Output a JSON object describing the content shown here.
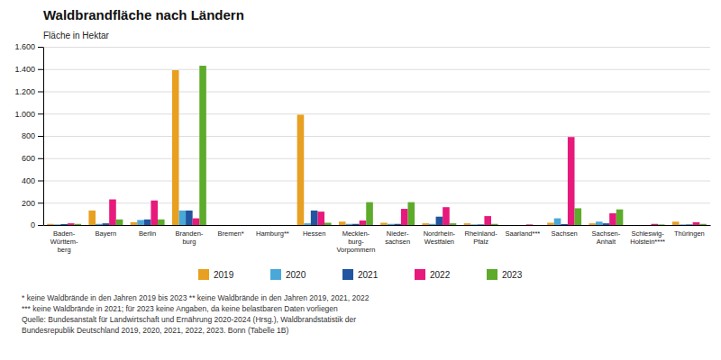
{
  "chart_data": {
    "type": "bar",
    "title": "Waldbrandfläche nach Ländern",
    "ylabel": "Fläche in Hektar",
    "categories": [
      "Baden-\nWürttem-\nberg",
      "Bayern",
      "Berlin",
      "Branden-\nburg",
      "Bremen*",
      "Hamburg**",
      "Hessen",
      "Mecklen-\nburg-\nVorpommern",
      "Nieder-\nsachsen",
      "Nordrhein-\nWestfalen",
      "Rheinland-\nPfalz",
      "Saarland***",
      "Sachsen",
      "Sachsen-\nAnhalt",
      "Schleswig-\nHolstein****",
      "Thüringen"
    ],
    "series": [
      {
        "name": "2019",
        "color": "#E8A020",
        "values": [
          10,
          130,
          25,
          1390,
          0,
          0,
          990,
          30,
          20,
          15,
          15,
          0,
          20,
          15,
          0,
          30
        ]
      },
      {
        "name": "2020",
        "color": "#4AA8D8",
        "values": [
          5,
          10,
          45,
          130,
          0,
          0,
          15,
          10,
          10,
          10,
          5,
          0,
          60,
          30,
          0,
          5
        ]
      },
      {
        "name": "2021",
        "color": "#2155A0",
        "values": [
          8,
          15,
          50,
          130,
          0,
          0,
          130,
          10,
          10,
          75,
          5,
          0,
          8,
          15,
          0,
          5
        ]
      },
      {
        "name": "2022",
        "color": "#E8197C",
        "values": [
          15,
          230,
          220,
          60,
          0,
          0,
          120,
          40,
          145,
          160,
          80,
          5,
          790,
          105,
          10,
          25
        ]
      },
      {
        "name": "2023",
        "color": "#5DAB2B",
        "values": [
          10,
          50,
          50,
          1430,
          0,
          0,
          20,
          205,
          205,
          15,
          10,
          0,
          150,
          140,
          5,
          10
        ]
      }
    ],
    "ylim": [
      0,
      1600
    ],
    "yticks": [
      0,
      200,
      400,
      600,
      800,
      {
        "value": 1000,
        "label": "1.000"
      },
      {
        "value": 1200,
        "label": "1.200"
      },
      {
        "value": 1400,
        "label": "1.400"
      },
      {
        "value": 1600,
        "label": "1.600"
      }
    ],
    "grid": true,
    "legend": "bottom",
    "annotations": [
      "* keine Waldbrände in den Jahren 2019 bis 2023   ** keine Waldbrände in den Jahren 2019, 2021, 2022",
      "*** keine Waldbrände in 2021; für 2023 keine Angaben, da keine belastbaren Daten vorliegen",
      "Quelle: Bundesanstalt für Landwirtschaft und Ernährung 2020-2024 (Hrsg.), Waldbrandstatistik der\nBundesrepublik Deutschland 2019, 2020, 2021, 2022, 2023. Bonn (Tabelle 1B)"
    ]
  }
}
